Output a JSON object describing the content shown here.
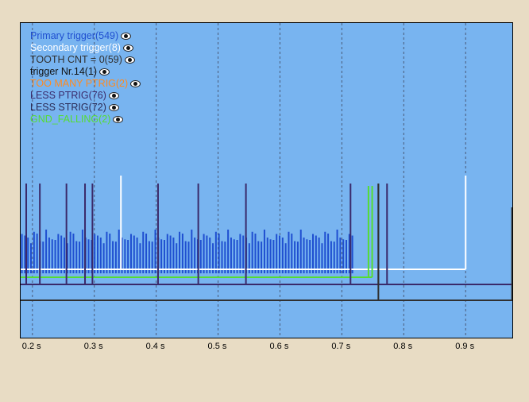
{
  "legend": [
    {
      "label": "Primary trigger(549)",
      "color": "#1f4fd0",
      "icon": "eye-icon"
    },
    {
      "label": "Secondary trigger(8)",
      "color": "#ffffff",
      "icon": "eye-icon"
    },
    {
      "label": "TOOTH CNT = 0(59)",
      "color": "#303030",
      "icon": "eye-icon"
    },
    {
      "label": "trigger Nr.14(1)",
      "color": "#111111",
      "icon": "eye-icon"
    },
    {
      "label": "TOO MANY PTRIG(2)",
      "color": "#ff8a20",
      "icon": "eye-icon"
    },
    {
      "label": "LESS PTRIG(76)",
      "color": "#3a2a6a",
      "icon": "eye-icon"
    },
    {
      "label": "LESS STRIG(72)",
      "color": "#2a2a55",
      "icon": "eye-icon"
    },
    {
      "label": "GND_FALLING(2)",
      "color": "#55dd33",
      "icon": "eye-icon"
    }
  ],
  "chart_data": {
    "type": "line",
    "x_axis_ticks": [
      "0.2 s",
      "0.3 s",
      "0.4 s",
      "0.5 s",
      "0.6 s",
      "0.7 s",
      "0.8 s",
      "0.9 s"
    ],
    "x_tick_values": [
      0.2,
      0.3,
      0.4,
      0.5,
      0.6,
      0.7,
      0.8,
      0.9
    ],
    "xlim": [
      0.181,
      0.978
    ],
    "grid": "vertical dashed",
    "background": "#78b4f0",
    "primary_trigger": {
      "color": "#1f4fd0",
      "x_start": 0.183,
      "x_end": 0.717,
      "count": 110,
      "levels": [
        0.55,
        0.5,
        0.45,
        0.42
      ]
    },
    "secondary_trigger": {
      "color": "#ffffff",
      "pulses": [
        0.343,
        0.9
      ],
      "baseline_end": 0.9
    },
    "less_ptrig": {
      "color": "#3a2a6a",
      "pulses": [
        0.19,
        0.212,
        0.255,
        0.285,
        0.297,
        0.403,
        0.468,
        0.545,
        0.714,
        0.759,
        0.773
      ]
    },
    "tooth_cnt": {
      "color": "#303030",
      "step_x": 0.759,
      "end_x": 0.975
    },
    "gnd_falling": {
      "color": "#55dd33",
      "pulses": [
        0.743,
        0.749
      ]
    }
  }
}
